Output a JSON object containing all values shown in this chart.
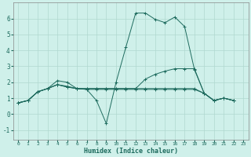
{
  "xlabel": "Humidex (Indice chaleur)",
  "bg_color": "#cff0ea",
  "grid_color": "#b0d9d0",
  "line_color": "#1e6b5e",
  "xlim": [
    -0.5,
    23.5
  ],
  "ylim": [
    -1.6,
    7.0
  ],
  "xticks": [
    0,
    1,
    2,
    3,
    4,
    5,
    6,
    7,
    8,
    9,
    10,
    11,
    12,
    13,
    14,
    15,
    16,
    17,
    18,
    19,
    20,
    21,
    22,
    23
  ],
  "yticks": [
    -1,
    0,
    1,
    2,
    3,
    4,
    5,
    6
  ],
  "series": [
    [
      0.7,
      0.85,
      1.4,
      1.6,
      1.85,
      1.7,
      1.6,
      1.55,
      0.85,
      -0.6,
      2.0,
      4.2,
      6.35,
      6.35,
      5.95,
      5.75,
      6.1,
      5.5,
      2.8,
      1.3,
      0.85,
      1.0,
      0.85
    ],
    [
      0.7,
      0.85,
      1.4,
      1.6,
      2.1,
      2.0,
      1.6,
      1.55,
      1.55,
      1.55,
      1.55,
      1.55,
      1.55,
      1.55,
      1.55,
      1.55,
      1.55,
      1.55,
      1.55,
      1.3,
      0.85,
      1.0,
      0.85
    ],
    [
      0.7,
      0.85,
      1.4,
      1.6,
      1.85,
      1.7,
      1.6,
      1.6,
      1.6,
      1.6,
      1.6,
      1.6,
      1.6,
      2.2,
      2.5,
      2.7,
      2.85,
      2.85,
      2.85,
      1.3,
      0.85,
      1.0,
      0.85
    ],
    [
      0.7,
      0.85,
      1.4,
      1.6,
      1.85,
      1.75,
      1.6,
      1.6,
      1.6,
      1.6,
      1.6,
      1.6,
      1.6,
      1.6,
      1.6,
      1.6,
      1.6,
      1.6,
      1.6,
      1.3,
      0.85,
      1.0,
      0.85
    ]
  ]
}
